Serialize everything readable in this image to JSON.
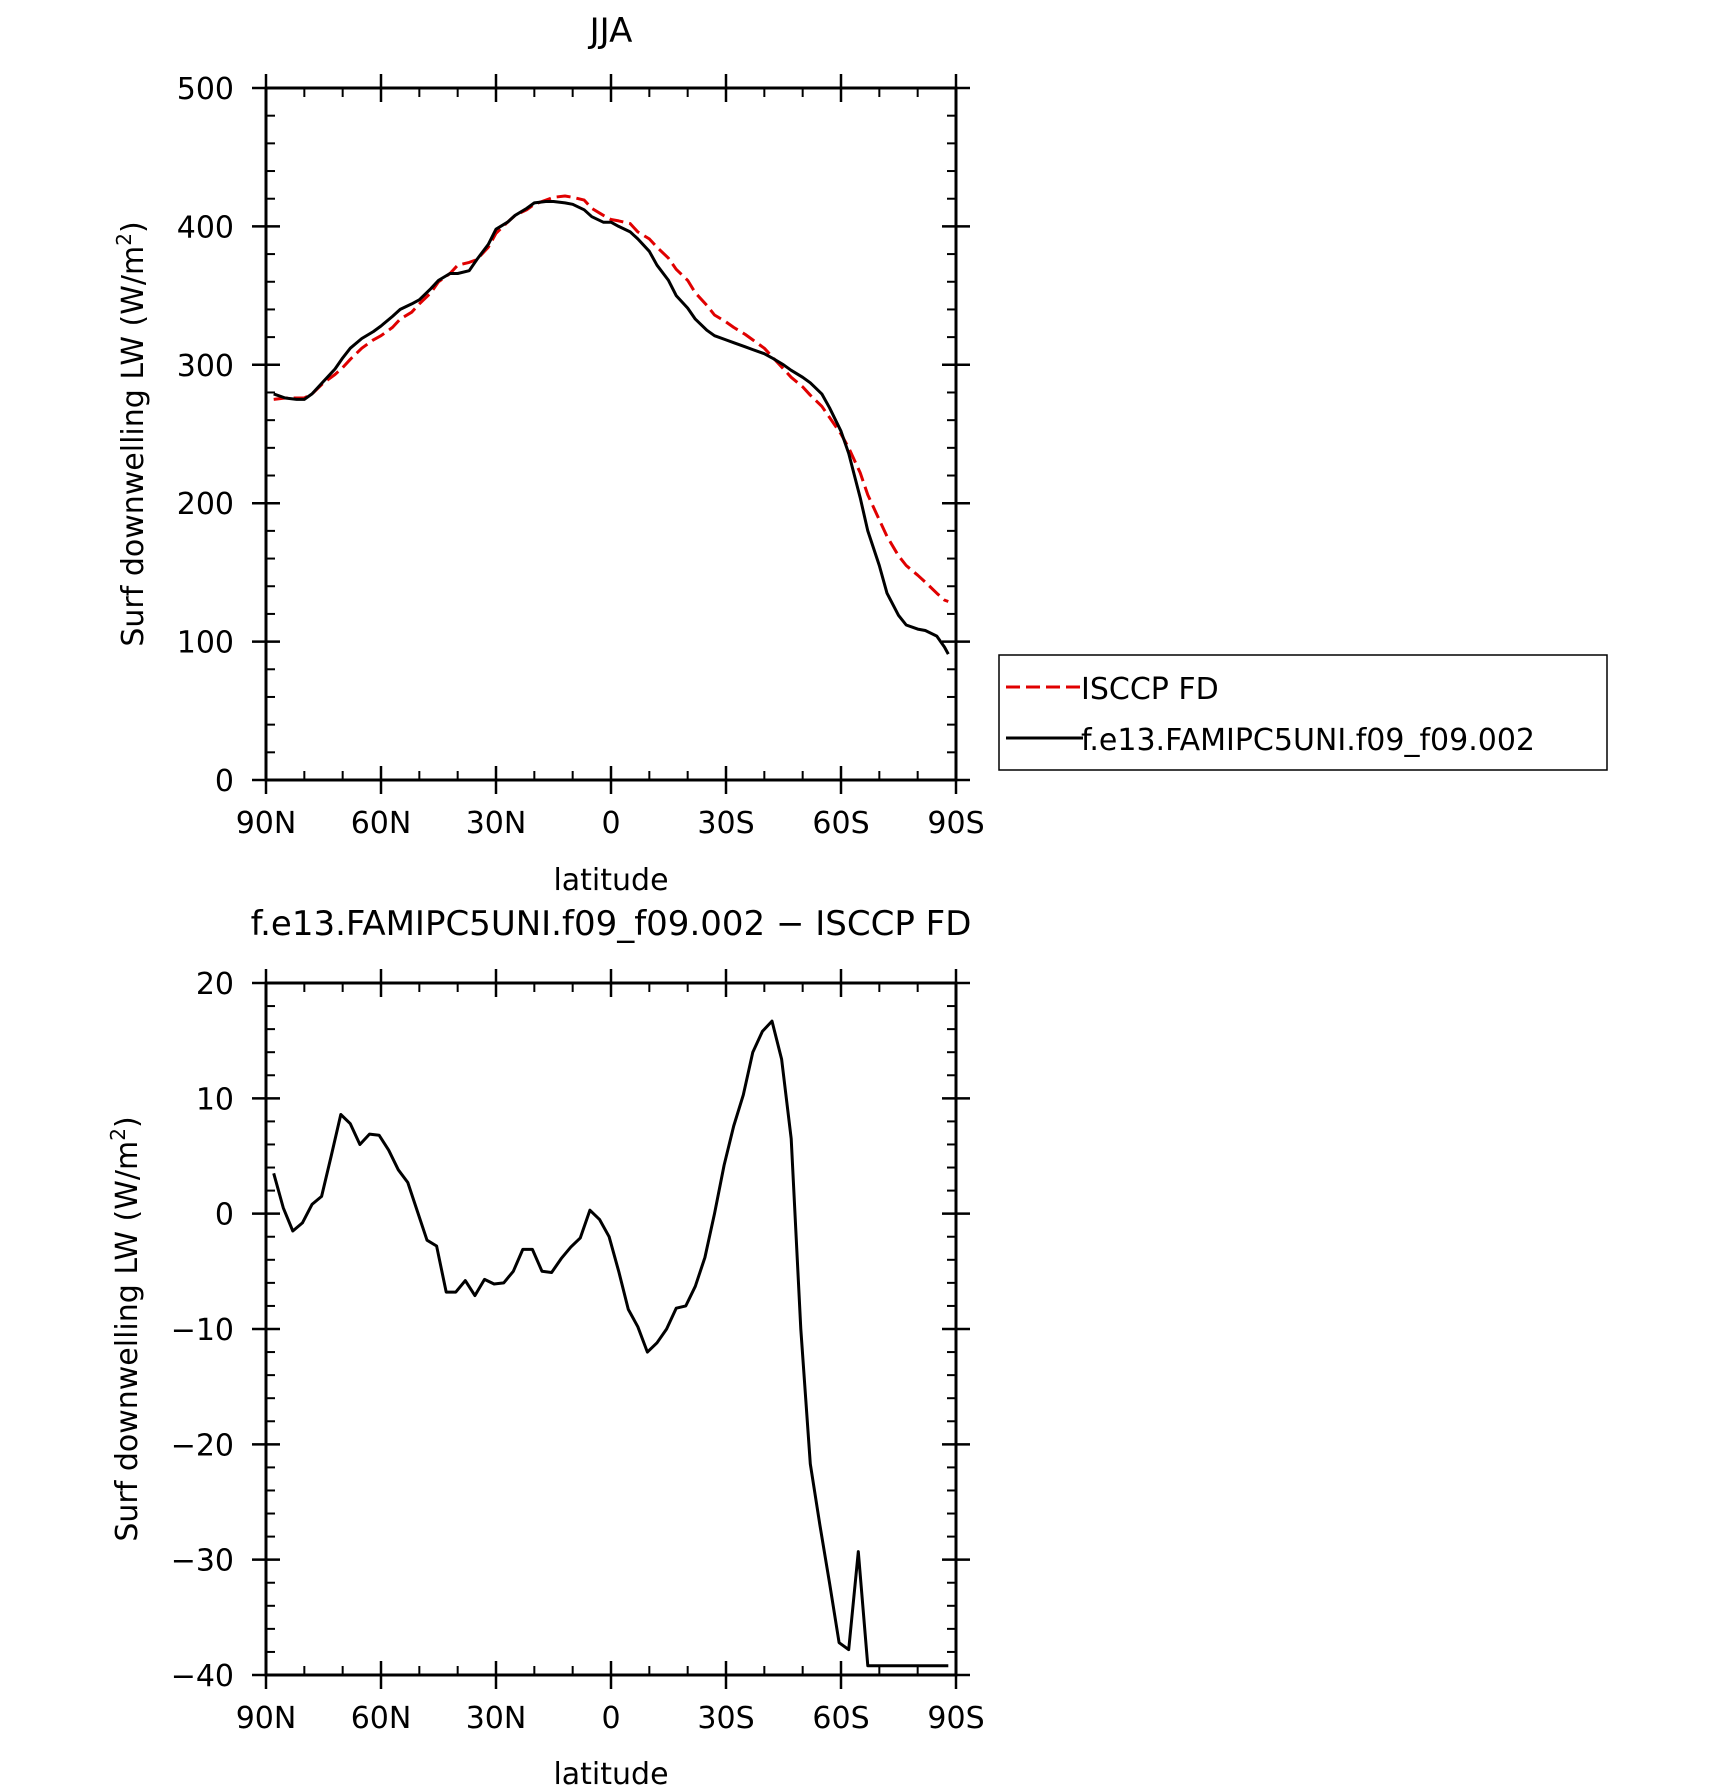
{
  "chart_data": [
    {
      "type": "line",
      "title": "JJA",
      "xlabel": "latitude",
      "ylabel": "Surf downwelling LW (W/m",
      "ylabel_sup": "2",
      "ylabel_close": ")",
      "xlim": [
        90,
        -90
      ],
      "ylim": [
        0,
        500
      ],
      "xticks": [
        90,
        60,
        30,
        0,
        -30,
        -60,
        -90
      ],
      "xtick_labels": [
        "90N",
        "60N",
        "30N",
        "0",
        "30S",
        "60S",
        "90S"
      ],
      "yticks": [
        0,
        100,
        200,
        300,
        400,
        500
      ],
      "ytick_labels": [
        "0",
        "100",
        "200",
        "300",
        "400",
        "500"
      ],
      "grid": false,
      "legend": "outside-right",
      "series": [
        {
          "name": "ISCCP FD",
          "color": "#e00000",
          "dash": true,
          "x": [
            88,
            85,
            82,
            80,
            78,
            75,
            72,
            70,
            68,
            65,
            62,
            60,
            57,
            55,
            52,
            50,
            47,
            45,
            42,
            40,
            37,
            35,
            32,
            30,
            27,
            25,
            22,
            20,
            17,
            15,
            12,
            10,
            7,
            5,
            2,
            0,
            -2,
            -5,
            -7,
            -10,
            -12,
            -15,
            -17,
            -20,
            -22,
            -25,
            -27,
            -30,
            -32,
            -35,
            -37,
            -40,
            -42,
            -45,
            -47,
            -50,
            -52,
            -55,
            -57,
            -60,
            -62,
            -65,
            -67,
            -70,
            -72,
            -75,
            -77,
            -80,
            -82,
            -85,
            -87,
            -88
          ],
          "y": [
            275,
            276,
            276,
            276,
            279,
            287,
            293,
            298,
            304,
            312,
            318,
            321,
            327,
            333,
            338,
            344,
            352,
            360,
            366,
            372,
            374,
            376,
            385,
            395,
            403,
            408,
            412,
            416,
            419,
            421,
            422,
            421,
            419,
            413,
            408,
            405,
            404,
            402,
            396,
            391,
            385,
            377,
            369,
            361,
            352,
            343,
            336,
            331,
            327,
            322,
            318,
            312,
            306,
            297,
            291,
            284,
            278,
            270,
            262,
            250,
            240,
            222,
            206,
            188,
            176,
            162,
            155,
            148,
            143,
            135,
            130,
            129
          ]
        },
        {
          "name": "f.e13.FAMIPC5UNI.f09_f09.002",
          "color": "#000000",
          "dash": false,
          "x": [
            88,
            85,
            82,
            80,
            78,
            75,
            72,
            70,
            68,
            65,
            62,
            60,
            57,
            55,
            52,
            50,
            47,
            45,
            42,
            40,
            37,
            35,
            32,
            30,
            27,
            25,
            22,
            20,
            17,
            15,
            12,
            10,
            7,
            5,
            2,
            0,
            -2,
            -5,
            -7,
            -10,
            -12,
            -15,
            -17,
            -20,
            -22,
            -25,
            -27,
            -30,
            -32,
            -35,
            -37,
            -40,
            -42,
            -45,
            -47,
            -50,
            -52,
            -55,
            -57,
            -60,
            -62,
            -65,
            -67,
            -70,
            -72,
            -75,
            -77,
            -80,
            -82,
            -85,
            -87,
            -88
          ],
          "y": [
            279,
            276,
            275,
            275,
            279,
            288,
            297,
            305,
            312,
            319,
            324,
            328,
            335,
            340,
            344,
            347,
            355,
            361,
            366,
            366,
            368,
            376,
            387,
            398,
            403,
            408,
            413,
            417,
            418,
            418,
            417,
            416,
            412,
            407,
            403,
            403,
            400,
            396,
            391,
            382,
            372,
            361,
            350,
            341,
            333,
            325,
            321,
            318,
            316,
            313,
            311,
            308,
            305,
            300,
            296,
            291,
            287,
            279,
            269,
            252,
            236,
            204,
            180,
            155,
            135,
            119,
            112,
            109,
            108,
            104,
            96,
            91
          ]
        }
      ]
    },
    {
      "type": "line",
      "title": "f.e13.FAMIPC5UNI.f09_f09.002 − ISCCP FD",
      "xlabel": "latitude",
      "ylabel": "Surf downwelling LW (W/m",
      "ylabel_sup": "2",
      "ylabel_close": ")",
      "xlim": [
        90,
        -90
      ],
      "ylim": [
        -40,
        20
      ],
      "xticks": [
        90,
        60,
        30,
        0,
        -30,
        -60,
        -90
      ],
      "xtick_labels": [
        "90N",
        "60N",
        "30N",
        "0",
        "30S",
        "60S",
        "90S"
      ],
      "yticks": [
        -40,
        -30,
        -20,
        -10,
        0,
        10,
        20
      ],
      "ytick_labels": [
        "−40",
        "−30",
        "−20",
        "−10",
        "0",
        "10",
        "20"
      ],
      "grid": false,
      "series": [
        {
          "name": "",
          "color": "#000000",
          "dash": false,
          "x": [
            88,
            85.5,
            83,
            80.5,
            78,
            75.5,
            73,
            70.5,
            68,
            65.5,
            63,
            60.5,
            58,
            55.5,
            53,
            50.5,
            48,
            45.5,
            43,
            40.5,
            38,
            35.5,
            33,
            30.5,
            28,
            25.5,
            23,
            20.5,
            18,
            15.5,
            13,
            10.5,
            8,
            5.5,
            3,
            0.5,
            -2,
            -4.5,
            -7,
            -9.5,
            -12,
            -14.5,
            -17,
            -19.5,
            -22,
            -24.5,
            -27,
            -29.5,
            -32,
            -34.5,
            -37,
            -39.5,
            -42,
            -44.5,
            -47,
            -49.5,
            -52,
            -54.5,
            -57,
            -59.5,
            -62,
            -64.5,
            -67,
            -69.5,
            -72,
            -74.5,
            -77,
            -79.5,
            -82,
            -84.5,
            -87,
            -88
          ],
          "y": [
            3.5,
            0.5,
            -1.5,
            -0.8,
            0.8,
            1.5,
            5.0,
            8.6,
            7.8,
            6.0,
            6.9,
            6.8,
            5.5,
            3.8,
            2.7,
            0.2,
            -2.3,
            -2.8,
            -6.8,
            -6.8,
            -5.8,
            -7.1,
            -5.7,
            -6.1,
            -6.0,
            -5.0,
            -3.1,
            -3.1,
            -5.0,
            -5.1,
            -3.9,
            -2.9,
            -2.1,
            0.3,
            -0.5,
            -2.0,
            -5.0,
            -8.3,
            -9.8,
            -12.0,
            -11.2,
            -10.0,
            -8.2,
            -8.0,
            -6.3,
            -3.8,
            0.0,
            4.2,
            7.6,
            10.3,
            14.0,
            15.8,
            16.7,
            13.4,
            6.5,
            -10.0,
            -21.7,
            -27.0,
            -32.0,
            -37.2,
            -37.8,
            -29.3,
            -39.2,
            -39.2,
            -39.2,
            -39.2,
            -39.2,
            -39.2,
            -39.2,
            -39.2,
            -39.2,
            -39.2
          ]
        }
      ]
    }
  ]
}
